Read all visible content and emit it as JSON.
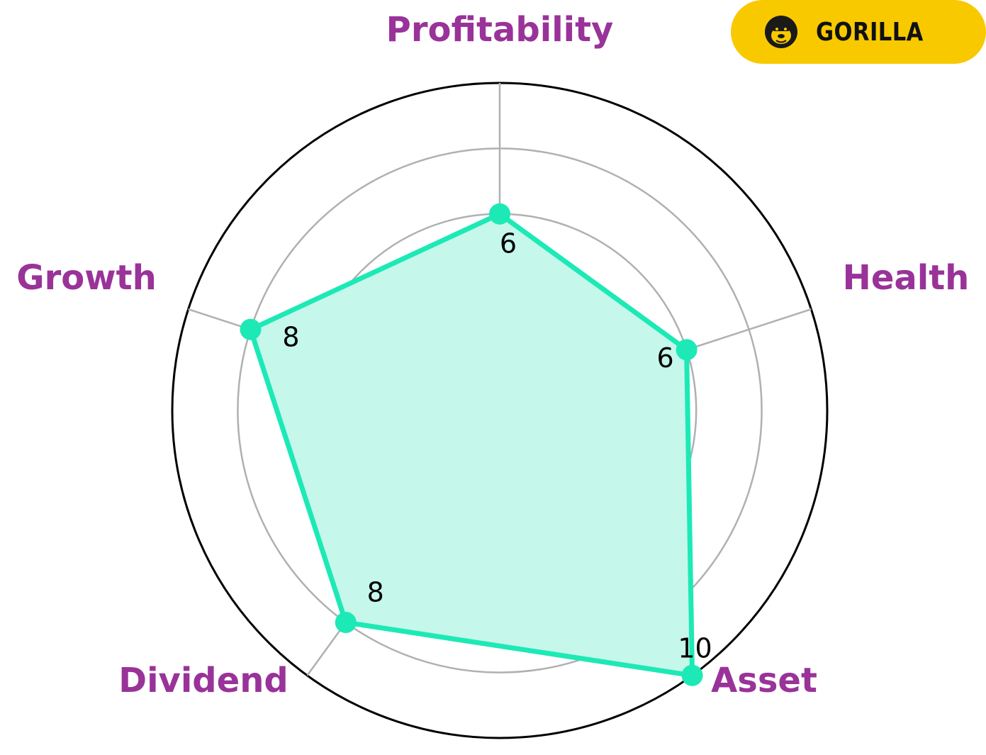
{
  "chart_data": {
    "type": "radar",
    "categories": [
      "Profitability",
      "Health",
      "Asset",
      "Dividend",
      "Growth"
    ],
    "values": [
      6,
      6,
      10,
      8,
      8
    ],
    "value_labels": [
      "6",
      "6",
      "10",
      "8",
      "8"
    ],
    "rlim": [
      0,
      10
    ],
    "rings": [
      2,
      4,
      6,
      8,
      10
    ],
    "grid": true,
    "colors": {
      "series_line": "#1de9b6",
      "series_fill": "#c5f7ea",
      "label_text": "#993399",
      "grid": "#b0b0b0",
      "outer_ring": "#000000"
    }
  },
  "brand": {
    "name": "GORILLA",
    "icon": "gorilla-face-icon",
    "color": "#f9c900"
  }
}
